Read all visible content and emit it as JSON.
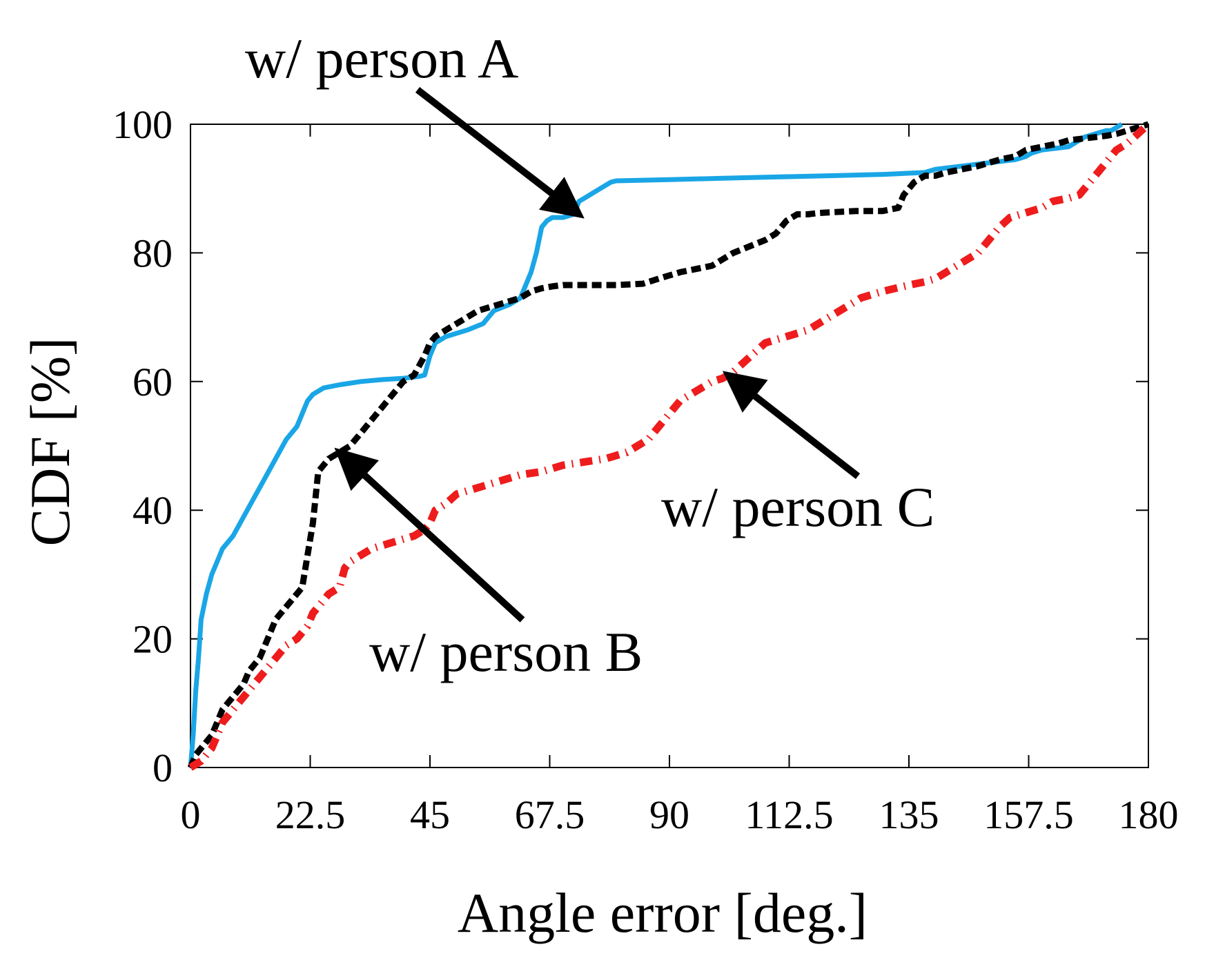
{
  "chart_data": {
    "type": "line",
    "title": "",
    "xlabel": "Angle error   [deg.]",
    "ylabel": "CDF [%]",
    "xlim": [
      0,
      180
    ],
    "ylim": [
      0,
      100
    ],
    "xticks": [
      0,
      22.5,
      45,
      67.5,
      90,
      112.5,
      135,
      157.5,
      180
    ],
    "xtick_labels": [
      "0",
      "22.5",
      "45",
      "67.5",
      "90",
      "112.5",
      "135",
      "157.5",
      "180"
    ],
    "yticks": [
      0,
      20,
      40,
      60,
      80,
      100
    ],
    "ytick_labels": [
      "0",
      "20",
      "40",
      "60",
      "80",
      "100"
    ],
    "grid": false,
    "legend": "none",
    "series": [
      {
        "color": "#1aa6e6",
        "style": "solid",
        "x": [
          0,
          0.5,
          1,
          1.5,
          2,
          3,
          4,
          5,
          6,
          8,
          10,
          12,
          14,
          16,
          18,
          20,
          21,
          22,
          23,
          25,
          28,
          32,
          36,
          40,
          43,
          44,
          45,
          46,
          48,
          52,
          55,
          57,
          60,
          62,
          63,
          64,
          65,
          66,
          67,
          68,
          70,
          72,
          73,
          74,
          76,
          78,
          79,
          80,
          90,
          100,
          110,
          120,
          130,
          138,
          140,
          145,
          150,
          155,
          157,
          158,
          160,
          165,
          166,
          168,
          170,
          172,
          173,
          174,
          175
        ],
        "y": [
          0,
          5,
          12,
          17,
          23,
          27,
          30,
          32,
          34,
          36,
          39,
          42,
          45,
          48,
          51,
          53,
          55,
          57,
          58,
          59,
          59.5,
          60,
          60.3,
          60.5,
          60.8,
          61,
          64,
          66,
          67,
          68,
          69,
          71,
          72,
          73,
          75,
          77,
          80,
          84,
          85,
          85.5,
          85.5,
          86,
          88,
          88.5,
          89.5,
          90.5,
          91,
          91.2,
          91.4,
          91.6,
          91.8,
          92,
          92.2,
          92.5,
          93,
          93.5,
          94,
          94.5,
          95,
          95.5,
          96,
          96.5,
          97,
          98,
          98.5,
          99,
          99,
          99.5,
          100
        ]
      },
      {
        "color": "#000000",
        "style": "dashed",
        "x": [
          0,
          1,
          2,
          3,
          4,
          5,
          6,
          7,
          8,
          10,
          11,
          12,
          13,
          14,
          15,
          16,
          17,
          18,
          19,
          20,
          21,
          22,
          23,
          24,
          25,
          26,
          27,
          28,
          29,
          30,
          32,
          34,
          36,
          38,
          40,
          42,
          44,
          45,
          46,
          48,
          50,
          52,
          54,
          56,
          58,
          60,
          62,
          64,
          66,
          68,
          70,
          75,
          80,
          85,
          88,
          90,
          92,
          95,
          98,
          100,
          102,
          105,
          108,
          110,
          112,
          114,
          116,
          118,
          120,
          125,
          130,
          133,
          134,
          135,
          136,
          138,
          140,
          142,
          145,
          148,
          150,
          152,
          155,
          157,
          160,
          163,
          165,
          168,
          170,
          172,
          174,
          176,
          178,
          180
        ],
        "y": [
          0,
          2,
          3,
          4,
          5,
          7,
          9,
          10,
          11,
          13,
          15,
          16,
          17,
          19,
          21,
          23,
          24,
          25,
          26,
          27,
          28,
          33,
          38,
          46,
          47,
          48,
          48.5,
          49,
          49.5,
          50,
          52,
          54,
          56,
          58,
          60,
          61,
          64,
          66,
          67,
          68,
          69,
          70,
          71,
          71.5,
          72,
          72.5,
          73,
          74,
          74.5,
          74.8,
          75,
          75,
          75,
          75.2,
          76,
          76.5,
          77,
          77.5,
          78,
          79,
          80,
          81,
          82,
          83,
          85,
          86,
          86,
          86.2,
          86.3,
          86.5,
          86.5,
          87,
          89,
          90,
          91,
          92,
          92,
          92.5,
          93,
          93.5,
          94,
          94.5,
          95,
          96,
          96.5,
          97,
          97.5,
          97.8,
          98,
          98.2,
          98.5,
          99,
          99.5,
          100
        ]
      },
      {
        "color": "#ee1c1c",
        "style": "dash-dot",
        "x": [
          0,
          2,
          4,
          5,
          6,
          8,
          10,
          12,
          14,
          16,
          18,
          20,
          21,
          22,
          23,
          24,
          26,
          28,
          29,
          30,
          32,
          34,
          36,
          38,
          40,
          42,
          44,
          45,
          46,
          48,
          50,
          54,
          58,
          62,
          66,
          70,
          74,
          78,
          82,
          86,
          88,
          90,
          92,
          94,
          96,
          98,
          100,
          102,
          104,
          106,
          108,
          110,
          112,
          116,
          120,
          124,
          126,
          130,
          135,
          138,
          140,
          142,
          144,
          146,
          148,
          150,
          152,
          154,
          156,
          158,
          160,
          162,
          165,
          167,
          168,
          170,
          172,
          173,
          174,
          176,
          178,
          180
        ],
        "y": [
          0,
          1,
          3,
          5,
          7,
          9,
          11,
          13,
          15,
          17,
          19,
          20,
          21,
          22,
          24,
          25,
          27,
          28,
          31,
          32,
          33,
          34,
          34.5,
          35,
          35.5,
          36,
          37,
          38,
          40,
          41,
          42.5,
          43.5,
          44.5,
          45.5,
          46,
          47,
          47.5,
          48,
          49,
          51,
          53,
          55,
          57,
          58,
          59,
          60,
          60.5,
          61.5,
          63,
          64.5,
          66,
          66.5,
          67,
          68,
          70,
          72,
          73,
          74,
          75,
          75.5,
          76,
          77,
          78,
          79,
          80,
          82,
          84,
          85.5,
          86,
          86.5,
          87,
          88,
          88.5,
          89,
          90,
          92,
          94,
          95,
          96,
          97,
          98.5,
          100
        ]
      }
    ],
    "annotations": [
      {
        "text": "w/ person A",
        "target": [
          73,
          86
        ]
      },
      {
        "text": "w/ person B",
        "target": [
          28,
          49
        ]
      },
      {
        "text": "w/ person C",
        "target": [
          101,
          61
        ]
      }
    ]
  }
}
